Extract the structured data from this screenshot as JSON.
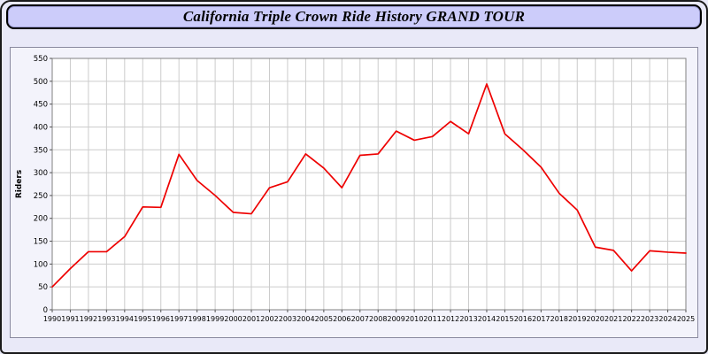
{
  "title": "California Triple Crown Ride History GRAND TOUR",
  "colors": {
    "page_background": "#e9e9f8",
    "title_bar_background": "#ccccfa",
    "plot_background": "#ffffff",
    "gridline": "#cccccc",
    "axis_border": "#808080",
    "line": "#ee0000"
  },
  "chart_data": {
    "type": "line",
    "title": "California Triple Crown Ride History GRAND TOUR",
    "xlabel": "",
    "ylabel": "Riders",
    "ylim": [
      0,
      550
    ],
    "ytick_step": 50,
    "grid": true,
    "legend_position": "none",
    "x": [
      1990,
      1991,
      1992,
      1993,
      1994,
      1995,
      1996,
      1997,
      1998,
      1999,
      2000,
      2001,
      2002,
      2003,
      2004,
      2005,
      2006,
      2007,
      2008,
      2009,
      2010,
      2011,
      2012,
      2013,
      2014,
      2015,
      2016,
      2017,
      2018,
      2019,
      2020,
      2021,
      2022,
      2023,
      2024,
      2025
    ],
    "series": [
      {
        "name": "Riders",
        "color": "#ee0000",
        "values": [
          50,
          90,
          127,
          127,
          160,
          225,
          224,
          340,
          283,
          250,
          213,
          210,
          267,
          280,
          341,
          310,
          267,
          338,
          341,
          391,
          371,
          379,
          412,
          385,
          494,
          385,
          350,
          312,
          255,
          218,
          137,
          130,
          85,
          129,
          126,
          124
        ]
      }
    ]
  }
}
